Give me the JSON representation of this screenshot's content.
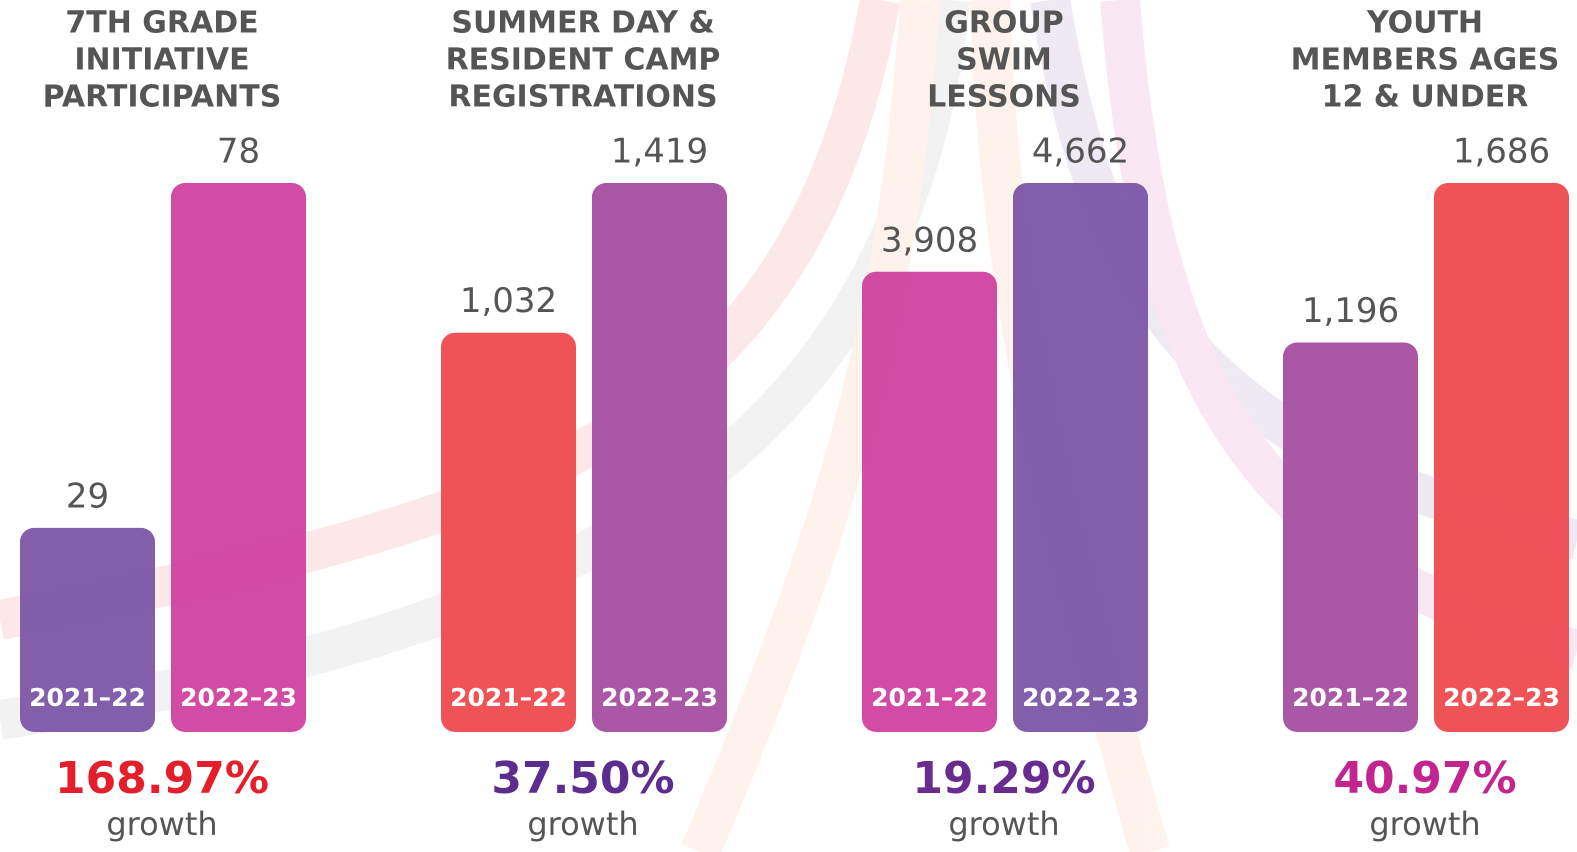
{
  "chart_data": [
    {
      "type": "bar",
      "title": [
        "7TH GRADE",
        "INITIATIVE",
        "PARTICIPANTS"
      ],
      "categories": [
        "2021–22",
        "2022–23"
      ],
      "values": [
        29,
        78
      ],
      "value_labels": [
        "29",
        "78"
      ],
      "colors": [
        "#7b55a6",
        "#d0419f"
      ],
      "annotation": "168.97%",
      "annotation_note": "growth",
      "annotation_color": "#e41e2b"
    },
    {
      "type": "bar",
      "title": [
        "SUMMER DAY &",
        "RESIDENT CAMP",
        "REGISTRATIONS"
      ],
      "categories": [
        "2021–22",
        "2022–23"
      ],
      "values": [
        1032,
        1419
      ],
      "value_labels": [
        "1,032",
        "1,419"
      ],
      "colors": [
        "#ee4a4f",
        "#a54fa1"
      ],
      "annotation": "37.50%",
      "annotation_note": "growth",
      "annotation_color": "#5b2d8e"
    },
    {
      "type": "bar",
      "title": [
        "GROUP",
        "SWIM",
        "LESSONS"
      ],
      "categories": [
        "2021–22",
        "2022–23"
      ],
      "values": [
        3908,
        4662
      ],
      "value_labels": [
        "3,908",
        "4,662"
      ],
      "colors": [
        "#d0419f",
        "#7b55a6"
      ],
      "annotation": "19.29%",
      "annotation_note": "growth",
      "annotation_color": "#6a2b8f"
    },
    {
      "type": "bar",
      "title": [
        "YOUTH",
        "MEMBERS AGES",
        "12 & UNDER"
      ],
      "categories": [
        "2021–22",
        "2022–23"
      ],
      "values": [
        1196,
        1686
      ],
      "value_labels": [
        "1,196",
        "1,686"
      ],
      "colors": [
        "#a54fa1",
        "#ee4a4f"
      ],
      "annotation": "40.97%",
      "annotation_note": "growth",
      "annotation_color": "#c2258f"
    }
  ]
}
